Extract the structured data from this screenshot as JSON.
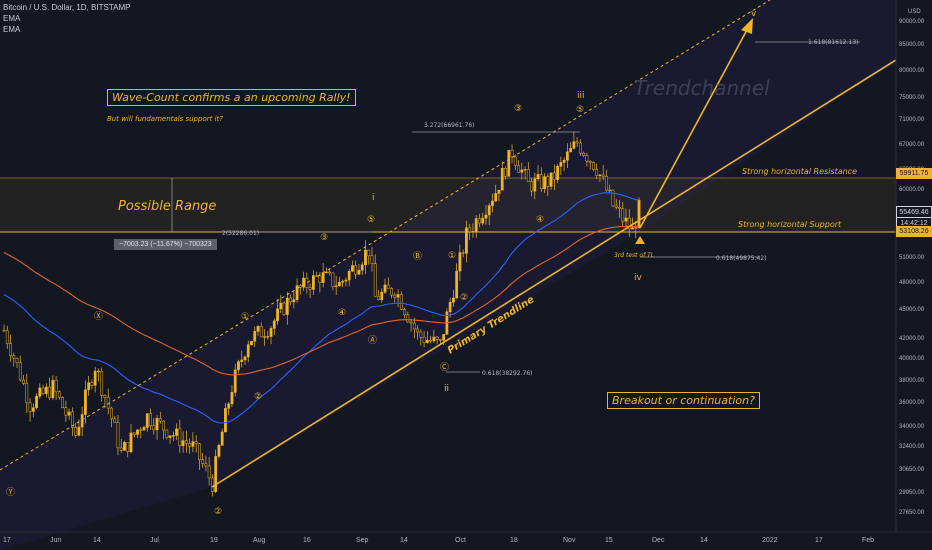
{
  "header": {
    "symbol_line": "Bitcoin / U.S. Dollar, 1D, BITSTAMP",
    "indicator_1": "EMA",
    "indicator_2": "EMA"
  },
  "annotations": {
    "headline": "Wave-Count confirms a an upcoming Rally!",
    "subline": "But will fundamentals support it?",
    "possible_range": "Possible Range",
    "range_measure": "−7003.23 (−11.67%) −700323",
    "trendchannel": "Trendchannel",
    "resistance": "Strong horizontal Resistance",
    "support": "Strong horizontal Support",
    "third_test": "3rd test of TL",
    "primary_trendline": "Primary Trendline",
    "breakout": "Breakout or continuation?",
    "fib_1618": "1.618(81612.13)",
    "fib_3272": "3.272(66961.76)",
    "fib_2": "2(52286.01)",
    "fib_0618_a": "0.618(49875.42)",
    "fib_0618_b": "0.618(38292.76)"
  },
  "wave_labels": {
    "i": "i",
    "ii": "ii",
    "iii": "iii",
    "iv": "iv",
    "v": "v",
    "c1": "①",
    "c2": "②",
    "c3": "③",
    "c4": "④",
    "c5": "⑤",
    "cA": "Ⓐ",
    "cB": "Ⓑ",
    "cC": "Ⓒ",
    "cX": "Ⓧ",
    "cY": "Ⓨ"
  },
  "price_axis": {
    "unit": "USD",
    "ticks": [
      "90000.00",
      "85000.00",
      "80000.00",
      "75000.00",
      "71000.00",
      "67000.00",
      "63000.00",
      "60000.00",
      "57000.00",
      "51000.00",
      "48000.00",
      "45000.00",
      "42000.00",
      "40000.00",
      "38000.00",
      "36000.00",
      "34000.00",
      "32400.00",
      "30650.00",
      "29050.00",
      "27650.00"
    ],
    "tag_resistance": "59911.75",
    "tag_current": "55469.46",
    "tag_countdown": "14:42:12",
    "tag_support": "53108.26"
  },
  "time_axis": {
    "ticks": [
      "17",
      "Jun",
      "14",
      "Jul",
      "19",
      "Aug",
      "16",
      "Sep",
      "14",
      "Oct",
      "18",
      "Nov",
      "15",
      "Dec",
      "14",
      "2022",
      "17",
      "Feb"
    ]
  },
  "colors": {
    "background": "#131722",
    "accent": "#f0b429",
    "ema_fast": "#2962ff",
    "ema_slow": "#e0652b",
    "candle_up": "#f0b429",
    "candle_down": "#f0b429"
  },
  "chart_data": {
    "type": "candlestick",
    "title": "Bitcoin / U.S. Dollar, 1D, BITSTAMP",
    "ylabel": "USD",
    "y_scale": "log",
    "ylim": [
      26500,
      95000
    ],
    "price_path": [
      [
        "2021-05-17",
        43000
      ],
      [
        "2021-05-25",
        36000
      ],
      [
        "2021-06-01",
        37500
      ],
      [
        "2021-06-08",
        33500
      ],
      [
        "2021-06-14",
        39500
      ],
      [
        "2021-06-22",
        32000
      ],
      [
        "2021-06-30",
        35000
      ],
      [
        "2021-07-08",
        33500
      ],
      [
        "2021-07-14",
        32500
      ],
      [
        "2021-07-20",
        29800
      ],
      [
        "2021-07-26",
        37500
      ],
      [
        "2021-07-31",
        42000
      ],
      [
        "2021-08-07",
        43500
      ],
      [
        "2021-08-14",
        47000
      ],
      [
        "2021-08-22",
        49000
      ],
      [
        "2021-08-28",
        48000
      ],
      [
        "2021-09-06",
        52200
      ],
      [
        "2021-09-08",
        46500
      ],
      [
        "2021-09-14",
        47500
      ],
      [
        "2021-09-21",
        42500
      ],
      [
        "2021-09-28",
        41500
      ],
      [
        "2021-10-02",
        47500
      ],
      [
        "2021-10-06",
        54000
      ],
      [
        "2021-10-15",
        60000
      ],
      [
        "2021-10-20",
        66000
      ],
      [
        "2021-10-25",
        61000
      ],
      [
        "2021-11-01",
        61500
      ],
      [
        "2021-11-09",
        67500
      ],
      [
        "2021-11-15",
        63500
      ],
      [
        "2021-11-20",
        58000
      ],
      [
        "2021-11-26",
        54500
      ],
      [
        "2021-11-28",
        57500
      ]
    ],
    "levels": {
      "strong_horizontal_resistance": 59911.75,
      "strong_horizontal_support": 53108.26,
      "current_price": 55469.46
    },
    "fib_levels": [
      {
        "label": "1.618",
        "value": 81612.13
      },
      {
        "label": "3.272",
        "value": 66961.76
      },
      {
        "label": "2",
        "value": 52286.01
      },
      {
        "label": "0.618",
        "value": 49875.42
      },
      {
        "label": "0.618",
        "value": 38292.76
      }
    ],
    "range_measure": {
      "change": -7003.23,
      "percent": -11.67
    },
    "grid": false
  }
}
